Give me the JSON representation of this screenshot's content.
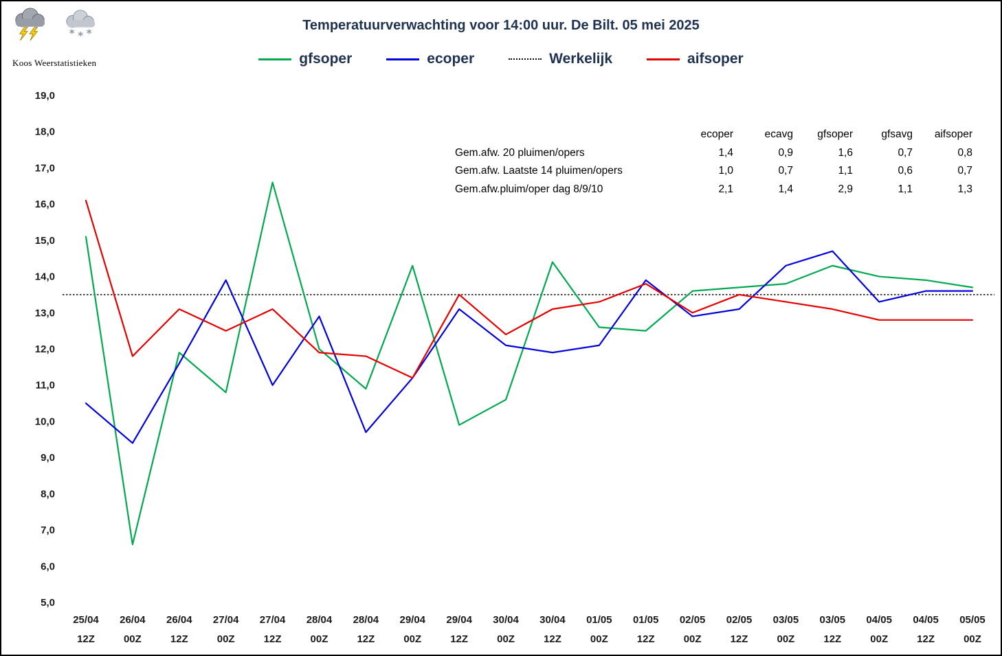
{
  "meta": {
    "brand": "Koos Weerstatistieken",
    "title": "Temperatuurverwachting voor 14:00 uur. De Bilt. 05 mei 2025"
  },
  "legend": [
    {
      "label": "gfsoper",
      "color": "#00A84F",
      "style": "solid"
    },
    {
      "label": "ecoper",
      "color": "#0000DC",
      "style": "solid"
    },
    {
      "label": "Werkelijk",
      "color": "#000000",
      "style": "dotted"
    },
    {
      "label": "aifsoper",
      "color": "#E50000",
      "style": "solid"
    }
  ],
  "stats_table": {
    "columns": [
      "ecoper",
      "ecavg",
      "gfsoper",
      "gfsavg",
      "aifsoper"
    ],
    "rows": [
      {
        "label": "Gem.afw. 20 pluimen/opers",
        "values": [
          "1,4",
          "0,9",
          "1,6",
          "0,7",
          "0,8"
        ]
      },
      {
        "label": "Gem.afw. Laatste 14 pluimen/opers",
        "values": [
          "1,0",
          "0,7",
          "1,1",
          "0,6",
          "0,7"
        ]
      },
      {
        "label": "Gem.afw.pluim/oper dag 8/9/10",
        "values": [
          "2,1",
          "1,4",
          "2,9",
          "1,1",
          "1,3"
        ]
      }
    ]
  },
  "chart_data": {
    "type": "line",
    "title": "Temperatuurverwachting voor 14:00 uur. De Bilt. 05 mei 2025",
    "ylabel": "",
    "xlabel": "",
    "ylim": [
      5.0,
      19.0
    ],
    "ytick_step": 1.0,
    "ytick_labels": [
      "19,0",
      "18,0",
      "17,0",
      "16,0",
      "15,0",
      "14,0",
      "13,0",
      "12,0",
      "11,0",
      "10,0",
      "9,0",
      "8,0",
      "7,0",
      "6,0",
      "5,0"
    ],
    "grid": false,
    "legend_position": "top",
    "categories": [
      {
        "date": "25/04",
        "time": "12Z"
      },
      {
        "date": "26/04",
        "time": "00Z"
      },
      {
        "date": "26/04",
        "time": "12Z"
      },
      {
        "date": "27/04",
        "time": "00Z"
      },
      {
        "date": "27/04",
        "time": "12Z"
      },
      {
        "date": "28/04",
        "time": "00Z"
      },
      {
        "date": "28/04",
        "time": "12Z"
      },
      {
        "date": "29/04",
        "time": "00Z"
      },
      {
        "date": "29/04",
        "time": "12Z"
      },
      {
        "date": "30/04",
        "time": "00Z"
      },
      {
        "date": "30/04",
        "time": "12Z"
      },
      {
        "date": "01/05",
        "time": "00Z"
      },
      {
        "date": "01/05",
        "time": "12Z"
      },
      {
        "date": "02/05",
        "time": "00Z"
      },
      {
        "date": "02/05",
        "time": "12Z"
      },
      {
        "date": "03/05",
        "time": "00Z"
      },
      {
        "date": "03/05",
        "time": "12Z"
      },
      {
        "date": "04/05",
        "time": "00Z"
      },
      {
        "date": "04/05",
        "time": "12Z"
      },
      {
        "date": "05/05",
        "time": "00Z"
      }
    ],
    "series": [
      {
        "name": "gfsoper",
        "color": "#00A84F",
        "values": [
          15.1,
          6.6,
          11.9,
          10.8,
          16.6,
          12.0,
          10.9,
          14.3,
          9.9,
          10.6,
          14.4,
          12.6,
          12.5,
          13.6,
          13.7,
          13.8,
          14.3,
          14.0,
          13.9,
          13.7
        ]
      },
      {
        "name": "ecoper",
        "color": "#0000DC",
        "values": [
          10.5,
          9.4,
          11.6,
          13.9,
          11.0,
          12.9,
          9.7,
          11.2,
          13.1,
          12.1,
          11.9,
          12.1,
          13.9,
          12.9,
          13.1,
          14.3,
          14.7,
          13.3,
          13.6,
          13.6
        ]
      },
      {
        "name": "aifsoper",
        "color": "#E50000",
        "values": [
          16.1,
          11.8,
          13.1,
          12.5,
          13.1,
          11.9,
          11.8,
          11.2,
          13.5,
          12.4,
          13.1,
          13.3,
          13.8,
          13.0,
          13.5,
          13.3,
          13.1,
          12.8,
          12.8,
          12.8
        ]
      }
    ],
    "reference_line": {
      "name": "Werkelijk",
      "value": 13.5,
      "color": "#1a1a1a",
      "style": "dotted"
    }
  }
}
